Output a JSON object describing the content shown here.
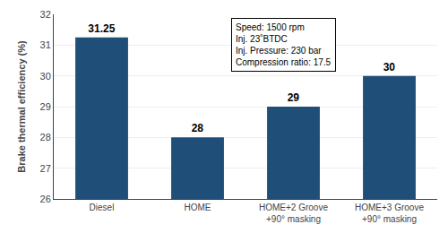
{
  "chart_data": {
    "type": "bar",
    "categories": [
      "Diesel",
      "HOME",
      "HOME+2 Groove\n+90° masking",
      "HOME+3 Groove\n+90° masking"
    ],
    "values": [
      31.25,
      28,
      29,
      30
    ],
    "color": "#1F4E79",
    "ylabel": "Brake thermal efficiency (%)",
    "ylim": [
      26,
      32
    ],
    "yticks": [
      26,
      27,
      28,
      29,
      30,
      31,
      32
    ],
    "grid": true,
    "data_labels": true,
    "annotation": "Speed: 1500 rpm\nInj. 23˚BTDC\nInj. Pressure: 230 bar\nCompression ratio: 17.5"
  }
}
